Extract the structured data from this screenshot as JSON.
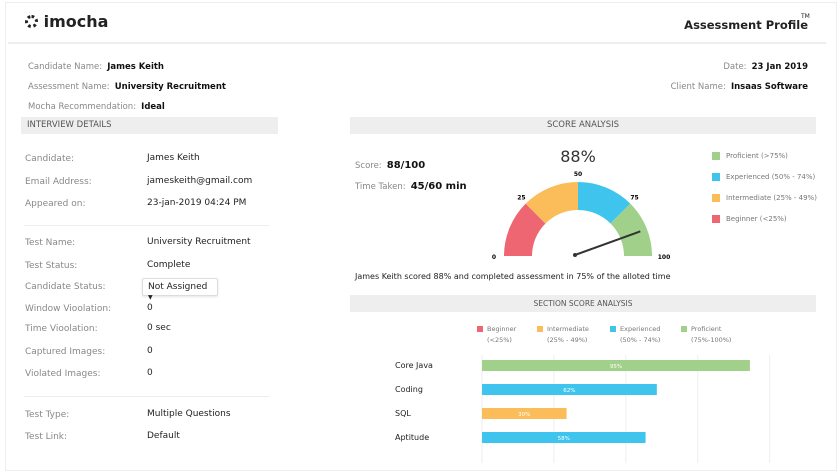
{
  "header": {
    "brand": "imocha",
    "title": "Assessment Profile",
    "tm": "TM"
  },
  "meta": {
    "candidate_name_label": "Candidate Name:",
    "candidate_name": "James Keith",
    "assessment_name_label": "Assessment Name:",
    "assessment_name": "University Recruitment",
    "recommendation_label": "Mocha Recommendation:",
    "recommendation": "Ideal",
    "date_label": "Date:",
    "date": "23 Jan 2019",
    "client_label": "Client Name:",
    "client": "Insaas Software"
  },
  "interview": {
    "title": "INTERVIEW DETAILS",
    "rows": [
      {
        "label": "Candidate:",
        "value": "James Keith"
      },
      {
        "label": "Email Address:",
        "value": "jameskeith@gmail.com"
      },
      {
        "label": "Appeared on:",
        "value": "23-jan-2019   04:24 PM"
      },
      {
        "label": "Test Name:",
        "value": "University Recruitment"
      },
      {
        "label": "Test Status:",
        "value": "Complete"
      },
      {
        "label": "Candidate Status:",
        "value": "Not Assigned"
      },
      {
        "label": "Window Vioolation:",
        "value": "0"
      },
      {
        "label": "Time Vioolation:",
        "value": "0 sec"
      },
      {
        "label": "Captured Images:",
        "value": "0"
      },
      {
        "label": "Violated Images:",
        "value": "0"
      },
      {
        "label": "Test Type:",
        "value": "Multiple Questions"
      },
      {
        "label": "Test Link:",
        "value": "Default"
      }
    ]
  },
  "score": {
    "title": "SCORE ANALYSIS",
    "score_label": "Score:",
    "score": "88/100",
    "time_label": "Time Taken:",
    "time": "45/60 min",
    "percent_text": "88%",
    "percent": 88,
    "gauge_ticks": [
      "0",
      "25",
      "50",
      "75",
      "100"
    ],
    "summary": "James Keith scored 88% and completed assessment in 75% of the alloted time",
    "legend": [
      {
        "label": "Proficient (>75%)",
        "color": "#a1d08a"
      },
      {
        "label": "Experienced (50% - 74%)",
        "color": "#3fc4ee"
      },
      {
        "label": "Intermediate (25% - 49%)",
        "color": "#fbbd59"
      },
      {
        "label": "Beginner (<25%)",
        "color": "#ef6673"
      }
    ]
  },
  "section": {
    "title": "SECTION SCORE ANALYSIS",
    "legend": [
      {
        "label": "Beginner",
        "range": "(<25%)",
        "color": "#ef6673"
      },
      {
        "label": "Intermediate",
        "range": "(25% - 49%)",
        "color": "#fbbd59"
      },
      {
        "label": "Experienced",
        "range": "(50% - 74%)",
        "color": "#3fc4ee"
      },
      {
        "label": "Proficient",
        "range": "(75%-100%)",
        "color": "#a1d08a"
      }
    ]
  },
  "chart_data": {
    "type": "bar",
    "orientation": "horizontal",
    "categories": [
      "Core Java",
      "Coding",
      "SQL",
      "Aptitude"
    ],
    "values": [
      95,
      62,
      30,
      58
    ],
    "labels": [
      "95%",
      "62%",
      "30%",
      "58%"
    ],
    "colors": [
      "#a1d08a",
      "#3fc4ee",
      "#fbbd59",
      "#3fc4ee"
    ],
    "xlim": [
      0,
      100
    ],
    "grid": true
  }
}
